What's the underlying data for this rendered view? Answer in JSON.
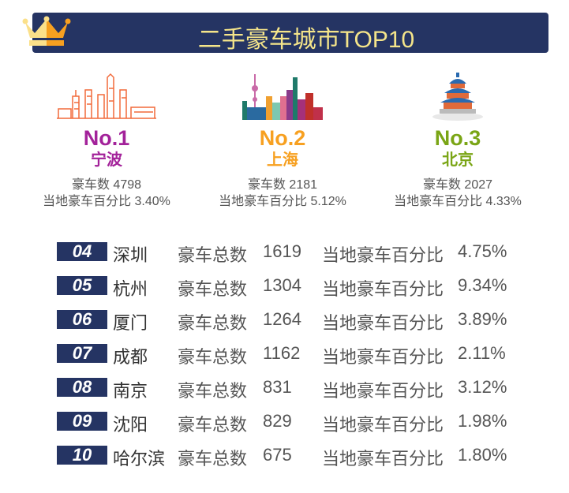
{
  "header": {
    "title": "二手豪车城市TOP10",
    "icon": "crown-icon"
  },
  "colors": {
    "header_bg": "#253463",
    "title": "#f5e58a",
    "rank1": "#a3229a",
    "rank2": "#f7a020",
    "rank3": "#7aa515"
  },
  "top3": [
    {
      "rank": "No.1",
      "city": "宁波",
      "count": "豪车数 4798",
      "pct": "当地豪车百分比 3.40%",
      "icon": "ningbo-skyline-icon"
    },
    {
      "rank": "No.2",
      "city": "上海",
      "count": "豪车数 2181",
      "pct": "当地豪车百分比 5.12%",
      "icon": "shanghai-skyline-icon"
    },
    {
      "rank": "No.3",
      "city": "北京",
      "count": "豪车数 2027",
      "pct": "当地豪车百分比 4.33%",
      "icon": "temple-of-heaven-icon"
    }
  ],
  "rows": [
    {
      "rank": "04",
      "city": "深圳",
      "count_label": "豪车总数",
      "count": "1619",
      "pct_label": "当地豪车百分比",
      "pct": "4.75%"
    },
    {
      "rank": "05",
      "city": "杭州",
      "count_label": "豪车总数",
      "count": "1304",
      "pct_label": "当地豪车百分比",
      "pct": "9.34%"
    },
    {
      "rank": "06",
      "city": "厦门",
      "count_label": "豪车总数",
      "count": "1264",
      "pct_label": "当地豪车百分比",
      "pct": "3.89%"
    },
    {
      "rank": "07",
      "city": "成都",
      "count_label": "豪车总数",
      "count": "1162",
      "pct_label": "当地豪车百分比",
      "pct": "2.11%"
    },
    {
      "rank": "08",
      "city": "南京",
      "count_label": "豪车总数",
      "count": "831",
      "pct_label": "当地豪车百分比",
      "pct": "3.12%"
    },
    {
      "rank": "09",
      "city": "沈阳",
      "count_label": "豪车总数",
      "count": "829",
      "pct_label": "当地豪车百分比",
      "pct": "1.98%"
    },
    {
      "rank": "10",
      "city": "哈尔滨",
      "count_label": "豪车总数",
      "count": "675",
      "pct_label": "当地豪车百分比",
      "pct": "1.80%"
    }
  ]
}
